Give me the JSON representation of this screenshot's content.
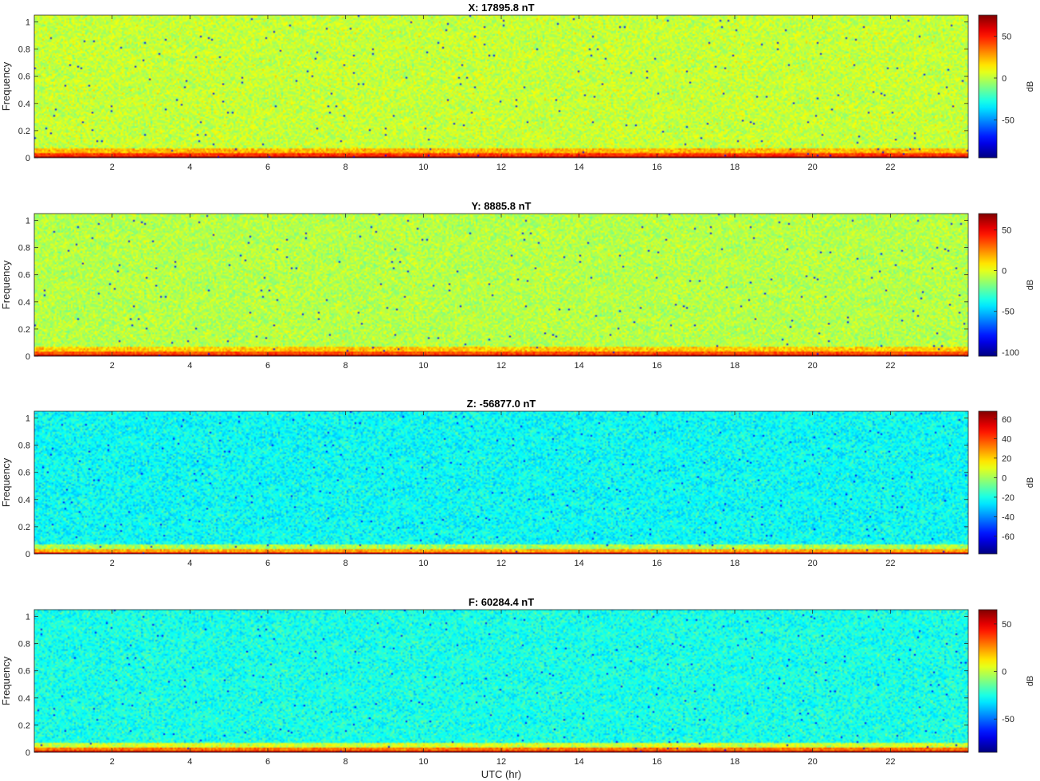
{
  "figure": {
    "xlabel": "UTC (hr)"
  },
  "chart_data": [
    {
      "type": "heatmap",
      "title": "X: 17895.8 nT",
      "xlabel": "",
      "ylabel": "Frequency",
      "xlim": [
        0,
        24
      ],
      "ylim": [
        0,
        1.05
      ],
      "xticks": [
        2,
        4,
        6,
        8,
        10,
        12,
        14,
        16,
        18,
        20,
        22
      ],
      "yticks": [
        0,
        0.2,
        0.4,
        0.6,
        0.8,
        1
      ],
      "colorbar": {
        "label": "dB",
        "clim": [
          -95,
          75
        ],
        "ticks": [
          50,
          0,
          -50
        ]
      },
      "background_db": 2,
      "low_band_db": 45,
      "floor_db": 70,
      "colormap": "jet"
    },
    {
      "type": "heatmap",
      "title": "Y: 8885.8 nT",
      "xlabel": "",
      "ylabel": "Frequency",
      "xlim": [
        0,
        24
      ],
      "ylim": [
        0,
        1.05
      ],
      "xticks": [
        2,
        4,
        6,
        8,
        10,
        12,
        14,
        16,
        18,
        20,
        22
      ],
      "yticks": [
        0,
        0.2,
        0.4,
        0.6,
        0.8,
        1
      ],
      "colorbar": {
        "label": "dB",
        "clim": [
          -105,
          70
        ],
        "ticks": [
          50,
          0,
          -50,
          -100
        ]
      },
      "background_db": -8,
      "low_band_db": 35,
      "floor_db": 65,
      "colormap": "jet"
    },
    {
      "type": "heatmap",
      "title": "Z: -56877.0 nT",
      "xlabel": "",
      "ylabel": "Frequency",
      "xlim": [
        0,
        24
      ],
      "ylim": [
        0,
        1.05
      ],
      "xticks": [
        2,
        4,
        6,
        8,
        10,
        12,
        14,
        16,
        18,
        20,
        22
      ],
      "yticks": [
        0,
        0.2,
        0.4,
        0.6,
        0.8,
        1
      ],
      "colorbar": {
        "label": "dB",
        "clim": [
          -78,
          68
        ],
        "ticks": [
          60,
          40,
          20,
          0,
          -20,
          -40,
          -60
        ]
      },
      "background_db": -22,
      "low_band_db": 25,
      "floor_db": 55,
      "colormap": "jet"
    },
    {
      "type": "heatmap",
      "title": "F: 60284.4 nT",
      "xlabel": "UTC (hr)",
      "ylabel": "Frequency",
      "xlim": [
        0,
        24
      ],
      "ylim": [
        0,
        1.05
      ],
      "xticks": [
        2,
        4,
        6,
        8,
        10,
        12,
        14,
        16,
        18,
        20,
        22
      ],
      "yticks": [
        0,
        0.2,
        0.4,
        0.6,
        0.8,
        1
      ],
      "colorbar": {
        "label": "dB",
        "clim": [
          -85,
          65
        ],
        "ticks": [
          50,
          0,
          -50
        ]
      },
      "background_db": -25,
      "low_band_db": 30,
      "floor_db": 58,
      "colormap": "jet"
    }
  ]
}
